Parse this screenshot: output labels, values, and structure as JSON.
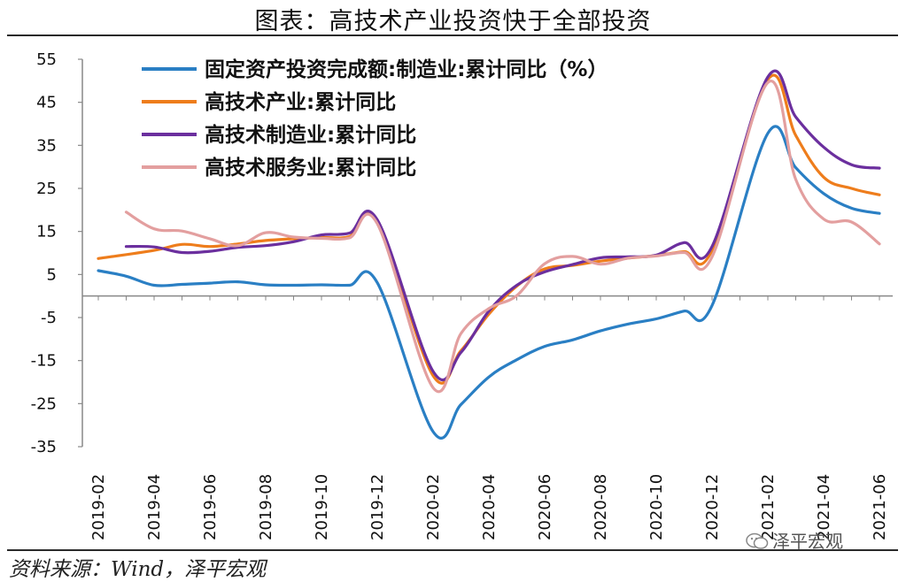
{
  "header": {
    "title": "图表：高技术产业投资快于全部投资"
  },
  "footer": {
    "source": "资料来源：Wind，泽平宏观",
    "watermark": "泽平宏观"
  },
  "chart_data": {
    "type": "line",
    "ylim": [
      -35,
      55
    ],
    "yticks": [
      55,
      45,
      35,
      25,
      15,
      5,
      -5,
      -15,
      -25,
      -35
    ],
    "x_labels": [
      "2019-02",
      "2019-04",
      "2019-06",
      "2019-08",
      "2019-10",
      "2019-12",
      "2020-02",
      "2020-04",
      "2020-06",
      "2020-08",
      "2020-10",
      "2020-12",
      "2021-02",
      "2021-04",
      "2021-06"
    ],
    "x": [
      "2019-02",
      "2019-03",
      "2019-04",
      "2019-05",
      "2019-06",
      "2019-07",
      "2019-08",
      "2019-09",
      "2019-10",
      "2019-11",
      "2019-12",
      "2020-01",
      "2020-02",
      "2020-03",
      "2020-04",
      "2020-05",
      "2020-06",
      "2020-07",
      "2020-08",
      "2020-09",
      "2020-10",
      "2020-11",
      "2020-12",
      "2021-01",
      "2021-02",
      "2021-03",
      "2021-04",
      "2021-05",
      "2021-06"
    ],
    "legend_position": "top-left",
    "grid": false,
    "series": [
      {
        "name": "固定资产投资完成额:制造业:累计同比（%）",
        "color": "#2a7fc4",
        "values": [
          5.9,
          4.6,
          2.5,
          2.7,
          3.0,
          3.3,
          2.6,
          2.5,
          2.6,
          2.5,
          3.1,
          null,
          -31.5,
          -25.2,
          -18.8,
          -14.8,
          -11.7,
          -10.2,
          -8.1,
          -6.5,
          -5.3,
          -3.5,
          -2.2,
          null,
          37.8,
          29.8,
          23.8,
          20.4,
          19.2
        ]
      },
      {
        "name": "高技术产业:累计同比",
        "color": "#ee7d1c",
        "values": [
          8.7,
          null,
          10.6,
          12.0,
          11.5,
          12.1,
          12.9,
          13.3,
          13.6,
          13.8,
          17.3,
          null,
          -18.5,
          -12.7,
          -4.2,
          2.3,
          6.3,
          7.1,
          8.1,
          8.8,
          9.4,
          10.3,
          10.6,
          null,
          50.3,
          37.3,
          27.6,
          25.0,
          23.5
        ]
      },
      {
        "name": "高技术制造业:累计同比",
        "color": "#6b2f9e",
        "values": [
          null,
          11.5,
          11.4,
          10.1,
          10.4,
          11.3,
          11.7,
          12.6,
          14.2,
          14.6,
          17.7,
          null,
          -17.5,
          -13.1,
          -3.5,
          2.5,
          5.6,
          7.3,
          8.9,
          9.1,
          9.5,
          12.4,
          11.5,
          null,
          50.9,
          41.6,
          34.6,
          30.5,
          29.7
        ]
      },
      {
        "name": "高技术服务业:累计同比",
        "color": "#e39f9f",
        "values": [
          null,
          19.5,
          15.6,
          15.1,
          13.3,
          11.7,
          14.7,
          13.7,
          13.4,
          13.5,
          16.8,
          null,
          -21.3,
          -8.7,
          -2.9,
          0.1,
          7.5,
          9.2,
          7.4,
          8.8,
          9.3,
          10.1,
          9.1,
          null,
          49.6,
          27.1,
          17.9,
          17.2,
          12.1
        ]
      }
    ]
  }
}
